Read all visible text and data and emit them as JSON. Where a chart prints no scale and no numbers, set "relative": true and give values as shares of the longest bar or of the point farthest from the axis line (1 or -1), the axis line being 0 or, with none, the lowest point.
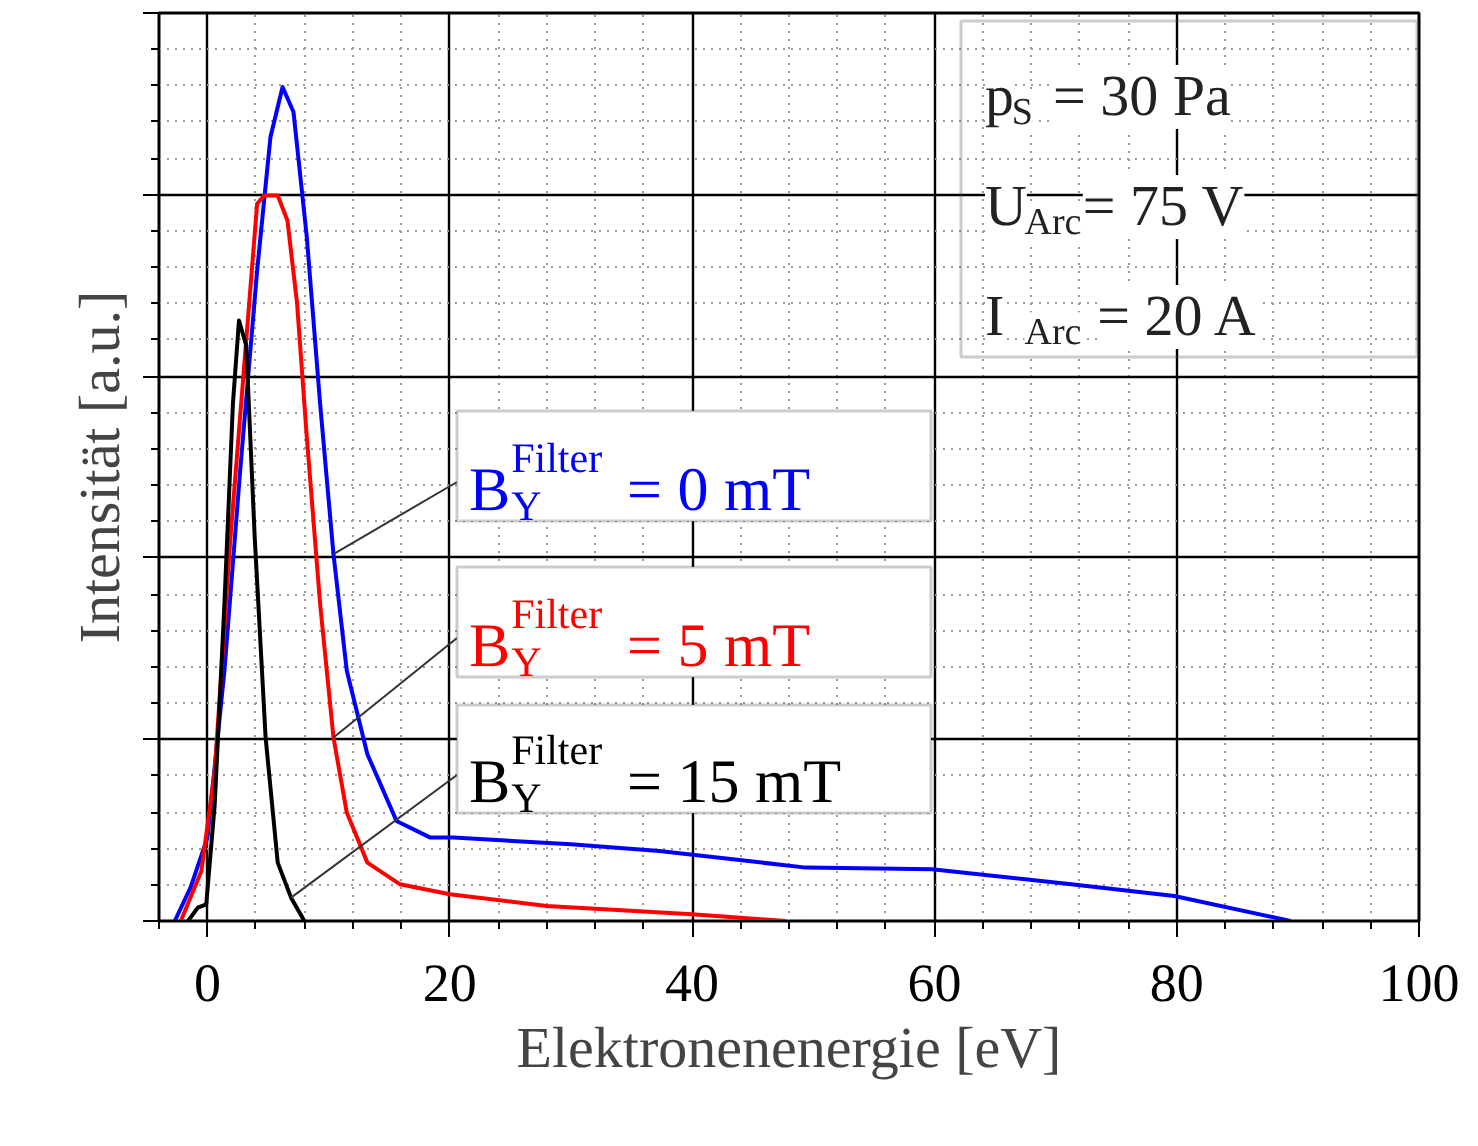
{
  "chart_data": {
    "type": "line",
    "xlabel": "Elektronenenergie [eV]",
    "ylabel": "Intensität [a.u.]",
    "relative": true,
    "xlim": [
      -4,
      100
    ],
    "xticks": [
      0,
      20,
      40,
      60,
      80,
      100
    ],
    "grid": true,
    "tick_labels": "x",
    "annotations": [
      "p$_{S}$ = 30 Pa",
      "U$_{Arc}$= 75 V",
      "I$_{Arc}$ = 20 A"
    ],
    "series": [
      {
        "name": "B$^{Filter}$$_{Y}$ = 0 mT",
        "color": "#0000ff",
        "x": [
          -2.7,
          -1.4,
          0,
          1.4,
          2.7,
          4.1,
          5.2,
          6.2,
          7.1,
          8.2,
          9.3,
          10.4,
          11.5,
          13.2,
          15.6,
          18.4,
          20.3,
          30,
          37.3,
          49.4,
          59.8,
          71.3,
          79.8,
          89.4
        ],
        "values": [
          0,
          0.04,
          0.1,
          0.3,
          0.54,
          0.78,
          0.94,
          1.0,
          0.97,
          0.82,
          0.62,
          0.44,
          0.3,
          0.2,
          0.12,
          0.1,
          0.1,
          0.092,
          0.084,
          0.064,
          0.062,
          0.044,
          0.03,
          0
        ]
      },
      {
        "name": "B$^{Filter}$$_{Y}$ = 5 mT",
        "color": "#ff0000",
        "x": [
          -2.2,
          -0.5,
          0.6,
          1.9,
          3.0,
          4.1,
          4.7,
          5.8,
          6.6,
          7.4,
          8.2,
          9.3,
          10.4,
          11.5,
          13.2,
          15.9,
          20,
          28,
          40,
          47.7
        ],
        "values": [
          0,
          0.06,
          0.18,
          0.46,
          0.66,
          0.86,
          0.87,
          0.87,
          0.84,
          0.74,
          0.58,
          0.38,
          0.22,
          0.13,
          0.07,
          0.044,
          0.032,
          0.018,
          0.008,
          0
        ]
      },
      {
        "name": "B$^{Filter}$$_{Y}$ = 15 mT",
        "color": "#000000",
        "x": [
          -1.6,
          -0.8,
          -0.1,
          0.6,
          1.4,
          2.1,
          2.6,
          3.2,
          3.9,
          4.8,
          5.8,
          6.9,
          8.0
        ],
        "values": [
          0,
          0.016,
          0.02,
          0.14,
          0.38,
          0.62,
          0.72,
          0.69,
          0.46,
          0.22,
          0.07,
          0.028,
          0
        ]
      }
    ]
  }
}
